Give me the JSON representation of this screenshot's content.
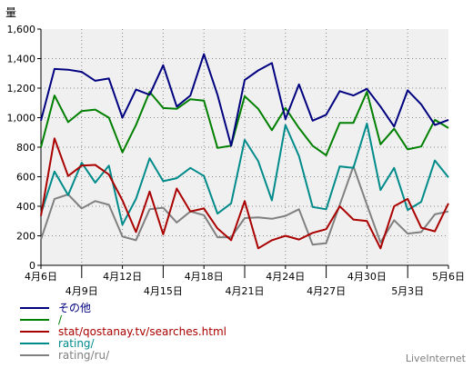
{
  "chart_data": {
    "type": "line",
    "ylabel": "量",
    "ylim": [
      0,
      1600
    ],
    "yticks": [
      "0",
      "200",
      "400",
      "600",
      "800",
      "1,000",
      "1,200",
      "1,400",
      "1,600"
    ],
    "xtick_labels": [
      {
        "index": 0,
        "label": "4月6日",
        "row": 1
      },
      {
        "index": 3,
        "label": "4月9日",
        "row": 2
      },
      {
        "index": 6,
        "label": "4月12日",
        "row": 1
      },
      {
        "index": 9,
        "label": "4月15日",
        "row": 2
      },
      {
        "index": 12,
        "label": "4月18日",
        "row": 1
      },
      {
        "index": 15,
        "label": "4月21日",
        "row": 2
      },
      {
        "index": 18,
        "label": "4月24日",
        "row": 1
      },
      {
        "index": 21,
        "label": "4月27日",
        "row": 2
      },
      {
        "index": 24,
        "label": "4月30日",
        "row": 1
      },
      {
        "index": 27,
        "label": "5月3日",
        "row": 2
      },
      {
        "index": 30,
        "label": "5月6日",
        "row": 1
      }
    ],
    "x": [
      "4月6日",
      "4月7日",
      "4月8日",
      "4月9日",
      "4月10日",
      "4月11日",
      "4月12日",
      "4月13日",
      "4月14日",
      "4月15日",
      "4月16日",
      "4月17日",
      "4月18日",
      "4月19日",
      "4月20日",
      "4月21日",
      "4月22日",
      "4月23日",
      "4月24日",
      "4月25日",
      "4月26日",
      "4月27日",
      "4月28日",
      "4月29日",
      "4月30日",
      "5月1日",
      "5月2日",
      "5月3日",
      "5月4日",
      "5月5日",
      "5月6日"
    ],
    "grid": true,
    "series": [
      {
        "name": "その他",
        "color": "#000080",
        "values": [
          980,
          1330,
          1325,
          1310,
          1250,
          1265,
          1000,
          1190,
          1155,
          1355,
          1075,
          1150,
          1430,
          1155,
          810,
          1255,
          1320,
          1370,
          990,
          1225,
          980,
          1020,
          1180,
          1150,
          1195,
          1075,
          940,
          1185,
          1090,
          950,
          985
        ]
      },
      {
        "name": "/",
        "color": "#008000",
        "values": [
          800,
          1150,
          970,
          1045,
          1055,
          1000,
          765,
          950,
          1175,
          1065,
          1060,
          1125,
          1115,
          795,
          810,
          1145,
          1060,
          915,
          1065,
          930,
          810,
          745,
          965,
          965,
          1175,
          820,
          925,
          785,
          805,
          985,
          930
        ]
      },
      {
        "name": "stat/qostanay.tv/searches.html",
        "color": "#aa0000",
        "values": [
          335,
          860,
          605,
          675,
          680,
          615,
          440,
          225,
          500,
          210,
          520,
          365,
          385,
          250,
          170,
          435,
          115,
          170,
          200,
          175,
          220,
          245,
          400,
          310,
          300,
          115,
          400,
          450,
          255,
          230,
          420
        ]
      },
      {
        "name": "rating/",
        "color": "#008b8b",
        "values": [
          350,
          635,
          475,
          695,
          560,
          675,
          275,
          450,
          725,
          570,
          590,
          660,
          605,
          350,
          420,
          850,
          705,
          440,
          950,
          740,
          395,
          380,
          670,
          660,
          960,
          510,
          660,
          375,
          430,
          710,
          595
        ]
      },
      {
        "name": "rating/ru/",
        "color": "#808080",
        "values": [
          175,
          450,
          480,
          385,
          435,
          410,
          195,
          170,
          380,
          390,
          290,
          365,
          340,
          190,
          190,
          320,
          325,
          315,
          335,
          380,
          140,
          150,
          410,
          670,
          410,
          155,
          305,
          215,
          225,
          345,
          365
        ]
      }
    ]
  },
  "watermark": "LiveInternet"
}
